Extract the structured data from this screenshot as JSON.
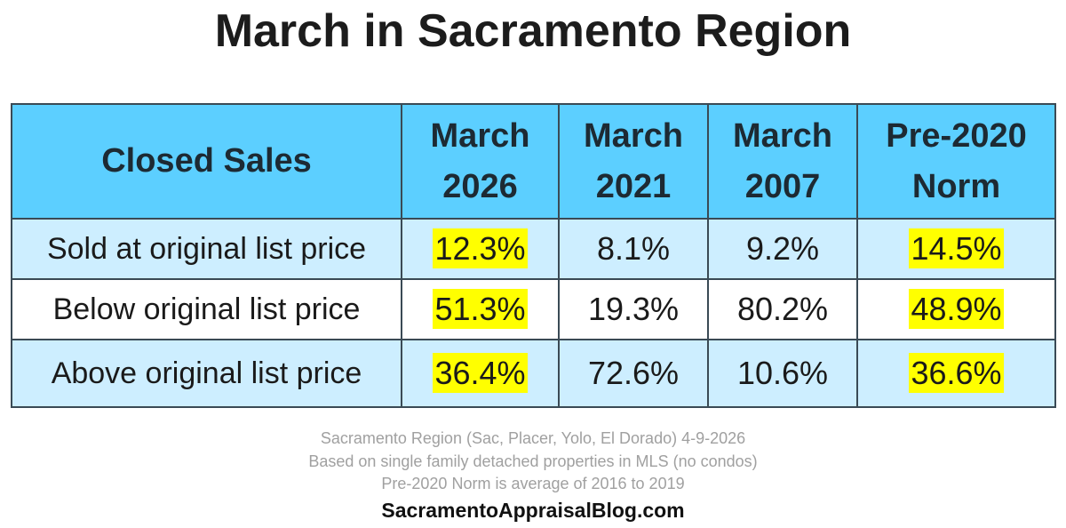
{
  "title": "March in Sacramento Region",
  "chart_data": {
    "type": "table",
    "columns": [
      "Closed Sales",
      "March 2026",
      "March 2021",
      "March 2007",
      "Pre-2020 Norm"
    ],
    "header_lines": [
      [
        "Closed Sales"
      ],
      [
        "March",
        "2026"
      ],
      [
        "March",
        "2021"
      ],
      [
        "March",
        "2007"
      ],
      [
        "Pre-2020",
        "Norm"
      ]
    ],
    "rows": [
      {
        "label": "Sold at original list price",
        "values": [
          "12.3%",
          "8.1%",
          "9.2%",
          "14.5%"
        ]
      },
      {
        "label": "Below original list price",
        "values": [
          "51.3%",
          "19.3%",
          "80.2%",
          "48.9%"
        ]
      },
      {
        "label": "Above original list price",
        "values": [
          "36.4%",
          "72.6%",
          "10.6%",
          "36.6%"
        ]
      }
    ],
    "highlighted_columns": [
      "March 2026",
      "Pre-2020 Norm"
    ],
    "colors": {
      "header": "#5ccfff",
      "row_alt": "#cdeeff",
      "highlight": "#ffff00"
    }
  },
  "footer": {
    "line1": "Sacramento Region (Sac, Placer, Yolo, El Dorado) 4-9-2026",
    "line2": "Based on single family detached properties in MLS (no condos)",
    "line3": "Pre-2020 Norm is average of 2016 to 2019",
    "site": "SacramentoAppraisalBlog.com"
  }
}
